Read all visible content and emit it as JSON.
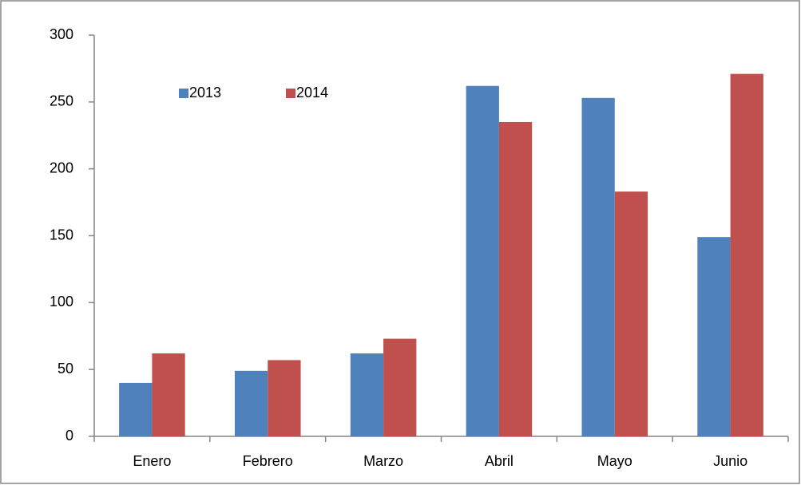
{
  "chart_data": {
    "type": "bar",
    "categories": [
      "Enero",
      "Febrero",
      "Marzo",
      "Abril",
      "Mayo",
      "Junio"
    ],
    "series": [
      {
        "name": "2013",
        "color": "#4f81bd",
        "values": [
          40,
          49,
          62,
          262,
          253,
          149
        ]
      },
      {
        "name": "2014",
        "color": "#c0504d",
        "values": [
          62,
          57,
          73,
          235,
          183,
          271
        ]
      }
    ],
    "ylim": [
      0,
      300
    ],
    "yticks": [
      0,
      50,
      100,
      150,
      200,
      250,
      300
    ],
    "grid": false,
    "legend": "top-left"
  }
}
